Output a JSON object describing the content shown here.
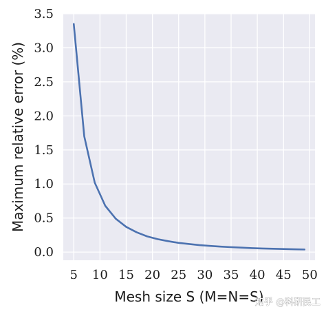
{
  "chart_data": {
    "type": "line",
    "xlabel": "Mesh size S (M=N=S)",
    "ylabel": "Maximum relative error (%)",
    "xlim": [
      3,
      51
    ],
    "ylim": [
      -0.12,
      3.5
    ],
    "xticks": [
      5,
      10,
      15,
      20,
      25,
      30,
      35,
      40,
      45,
      50
    ],
    "yticks": [
      0.0,
      0.5,
      1.0,
      1.5,
      2.0,
      2.5,
      3.0,
      3.5
    ],
    "ytick_labels": [
      "0.0",
      "0.5",
      "1.0",
      "1.5",
      "2.0",
      "2.5",
      "3.0",
      "3.5"
    ],
    "xtick_labels": [
      "5",
      "10",
      "15",
      "20",
      "25",
      "30",
      "35",
      "40",
      "45",
      "50"
    ],
    "grid": true,
    "background": "#eaeaf2",
    "grid_color": "#ffffff",
    "line_color": "#4c72b0",
    "series": [
      {
        "x": [
          5,
          7,
          9,
          11,
          13,
          15,
          17,
          19,
          21,
          23,
          25,
          27,
          29,
          31,
          33,
          35,
          37,
          39,
          41,
          43,
          45,
          47,
          49
        ],
        "y": [
          3.35,
          1.7,
          1.02,
          0.68,
          0.49,
          0.37,
          0.29,
          0.23,
          0.19,
          0.16,
          0.135,
          0.118,
          0.102,
          0.09,
          0.08,
          0.072,
          0.065,
          0.058,
          0.053,
          0.049,
          0.045,
          0.041,
          0.038
        ]
      }
    ]
  },
  "watermark": "知乎 @科研民工"
}
